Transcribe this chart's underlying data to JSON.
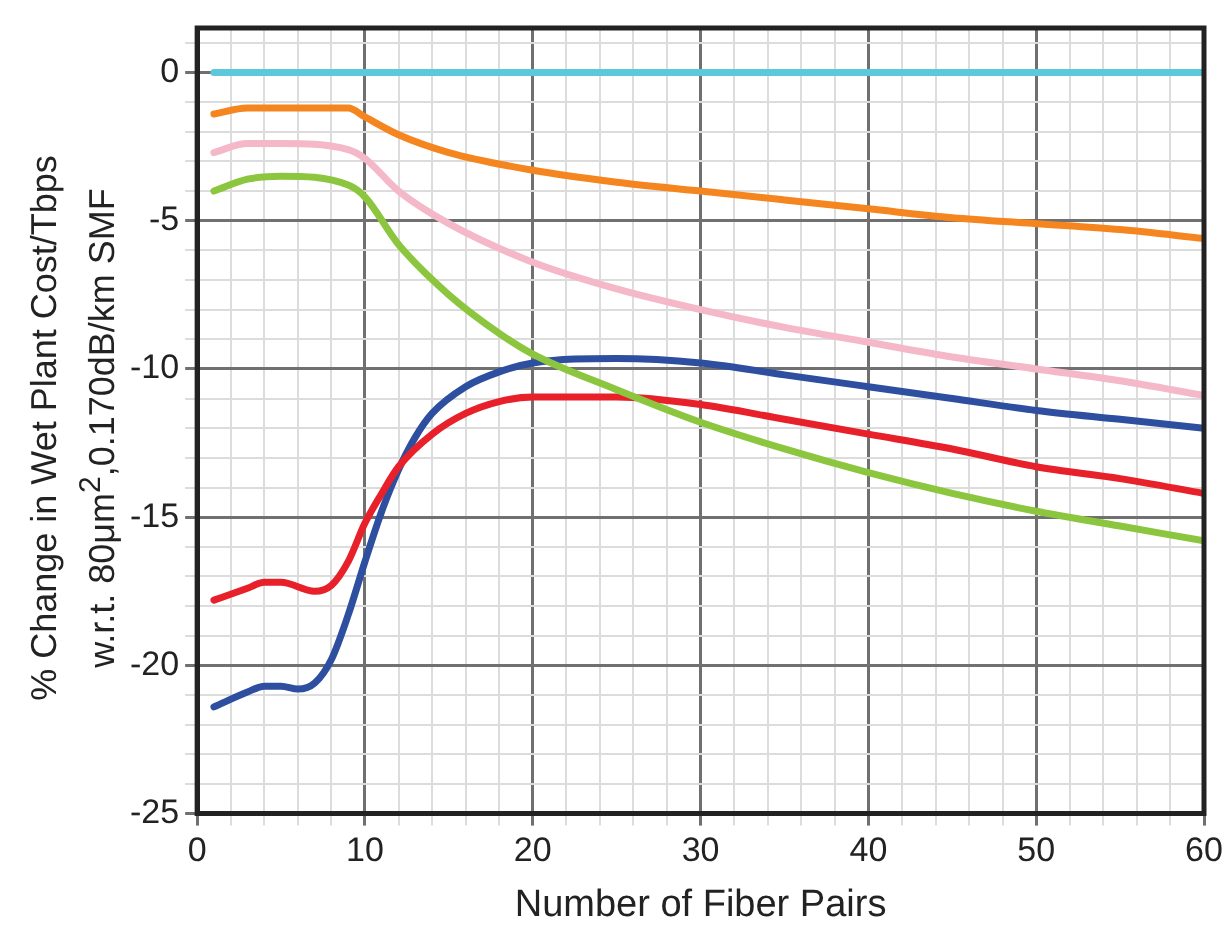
{
  "chart_data": {
    "type": "line",
    "xlabel": "Number of Fiber Pairs",
    "ylabel": "% Change in Wet Plant Cost/Tbps\nw.r.t. 80μm$^{2}$,0.170dB/km SMF",
    "xlim": [
      0,
      60
    ],
    "ylim": [
      -25,
      1.5
    ],
    "xticks": [
      0,
      {
        "value": 2,
        "label": null
      },
      {
        "value": 4,
        "label": null
      },
      {
        "value": 6,
        "label": null
      },
      {
        "value": 8,
        "label": null
      },
      10,
      {
        "value": 12,
        "label": null
      },
      {
        "value": 14,
        "label": null
      },
      {
        "value": 16,
        "label": null
      },
      {
        "value": 18,
        "label": null
      },
      20,
      {
        "value": 22,
        "label": null
      },
      {
        "value": 24,
        "label": null
      },
      {
        "value": 26,
        "label": null
      },
      {
        "value": 28,
        "label": null
      },
      30,
      {
        "value": 32,
        "label": null
      },
      {
        "value": 34,
        "label": null
      },
      {
        "value": 36,
        "label": null
      },
      {
        "value": 38,
        "label": null
      },
      40,
      {
        "value": 42,
        "label": null
      },
      {
        "value": 44,
        "label": null
      },
      {
        "value": 46,
        "label": null
      },
      {
        "value": 48,
        "label": null
      },
      50,
      {
        "value": 52,
        "label": null
      },
      {
        "value": 54,
        "label": null
      },
      {
        "value": 56,
        "label": null
      },
      {
        "value": 58,
        "label": null
      },
      60
    ],
    "yticks": [
      -25,
      {
        "value": -24,
        "label": null
      },
      {
        "value": -23,
        "label": null
      },
      {
        "value": -22,
        "label": null
      },
      {
        "value": -21,
        "label": null
      },
      -20,
      {
        "value": -19,
        "label": null
      },
      {
        "value": -18,
        "label": null
      },
      {
        "value": -17,
        "label": null
      },
      {
        "value": -16,
        "label": null
      },
      -15,
      {
        "value": -14,
        "label": null
      },
      {
        "value": -13,
        "label": null
      },
      {
        "value": -12,
        "label": null
      },
      {
        "value": -11,
        "label": null
      },
      -10,
      {
        "value": -9,
        "label": null
      },
      {
        "value": -8,
        "label": null
      },
      {
        "value": -7,
        "label": null
      },
      {
        "value": -6,
        "label": null
      },
      -5,
      {
        "value": -4,
        "label": null
      },
      {
        "value": -3,
        "label": null
      },
      {
        "value": -2,
        "label": null
      },
      {
        "value": -1,
        "label": null
      },
      0,
      {
        "value": 1,
        "label": null
      }
    ],
    "grid": true,
    "legend": false,
    "marker": "none",
    "line_style": "solid",
    "series": [
      {
        "color": "#5bc8dc",
        "x": [
          1,
          60
        ],
        "values": [
          0,
          0
        ]
      },
      {
        "color": "#f5861f",
        "x": [
          1,
          3,
          5,
          9,
          10,
          12,
          15,
          20,
          25,
          30,
          35,
          40,
          45,
          50,
          55,
          60
        ],
        "values": [
          -1.4,
          -1.2,
          -1.2,
          -1.2,
          -1.5,
          -2.1,
          -2.7,
          -3.3,
          -3.7,
          -4.0,
          -4.3,
          -4.6,
          -4.9,
          -5.1,
          -5.3,
          -5.6
        ]
      },
      {
        "color": "#f5b8c8",
        "x": [
          1,
          3,
          5,
          9,
          10,
          12,
          15,
          20,
          25,
          30,
          35,
          40,
          45,
          50,
          55,
          60
        ],
        "values": [
          -2.7,
          -2.4,
          -2.4,
          -2.6,
          -2.9,
          -4.0,
          -5.1,
          -6.4,
          -7.3,
          -8.0,
          -8.6,
          -9.1,
          -9.6,
          -10.0,
          -10.4,
          -10.9
        ]
      },
      {
        "color": "#8cc63f",
        "x": [
          1,
          3,
          5,
          9,
          10,
          12,
          15,
          18,
          20,
          25,
          30,
          35,
          40,
          45,
          50,
          55,
          60
        ],
        "values": [
          -4.0,
          -3.6,
          -3.5,
          -3.8,
          -4.2,
          -5.8,
          -7.5,
          -8.8,
          -9.5,
          -10.7,
          -11.8,
          -12.7,
          -13.5,
          -14.2,
          -14.8,
          -15.3,
          -15.8
        ]
      },
      {
        "color": "#e8202a",
        "x": [
          1,
          3,
          4,
          5,
          7,
          8,
          9,
          10,
          11,
          12,
          14,
          16,
          18,
          20,
          25,
          30,
          35,
          40,
          45,
          50,
          55,
          60
        ],
        "values": [
          -17.8,
          -17.4,
          -17.2,
          -17.2,
          -17.5,
          -17.3,
          -16.5,
          -15.2,
          -14.2,
          -13.3,
          -12.2,
          -11.5,
          -11.1,
          -10.95,
          -10.95,
          -11.2,
          -11.7,
          -12.2,
          -12.7,
          -13.3,
          -13.7,
          -14.2
        ]
      },
      {
        "color": "#2e4ea0",
        "x": [
          1,
          3,
          4,
          5,
          6,
          7,
          8,
          9,
          10,
          11,
          12,
          13,
          14,
          16,
          18,
          20,
          25,
          30,
          35,
          40,
          45,
          50,
          55,
          60
        ],
        "values": [
          -21.4,
          -20.9,
          -20.7,
          -20.7,
          -20.8,
          -20.6,
          -19.8,
          -18.3,
          -16.5,
          -14.8,
          -13.4,
          -12.3,
          -11.5,
          -10.6,
          -10.1,
          -9.8,
          -9.65,
          -9.8,
          -10.2,
          -10.6,
          -11.0,
          -11.4,
          -11.7,
          -12.0
        ]
      }
    ]
  }
}
